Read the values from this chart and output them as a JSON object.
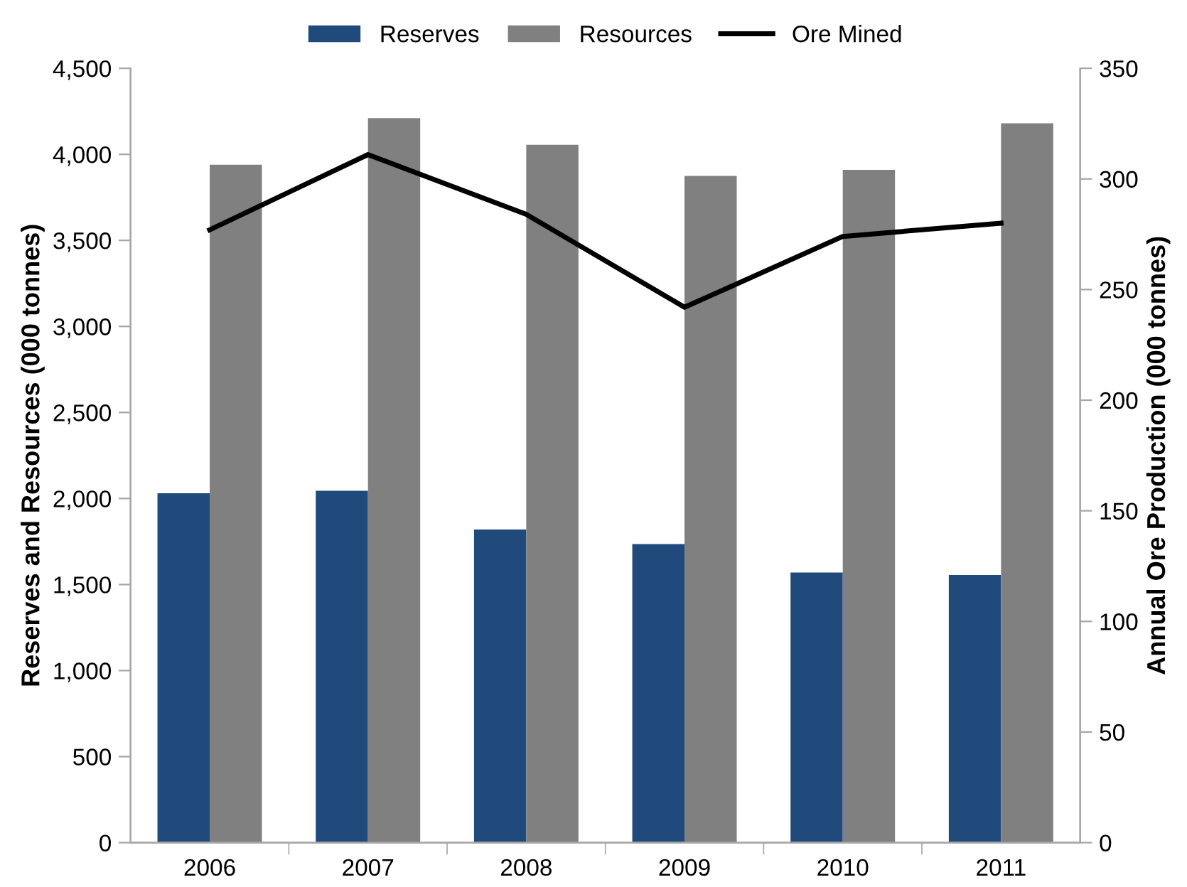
{
  "chart_data": {
    "type": "bar",
    "categories": [
      "2006",
      "2007",
      "2008",
      "2009",
      "2010",
      "2011"
    ],
    "ylabel": "Reserves and Resources (000 tonnes)",
    "y2label": "Annual Ore Production (000 tonnes)",
    "series": [
      {
        "name": "Reserves",
        "color": "#204a7c",
        "values": [
          2030,
          2045,
          1820,
          1735,
          1570,
          1555
        ]
      },
      {
        "name": "Resources",
        "color": "#808080",
        "values": [
          3940,
          4210,
          4055,
          3875,
          3910,
          4180
        ]
      },
      {
        "name": "Ore Mined",
        "type": "line",
        "axis": "y2",
        "color": "#000000",
        "values": [
          277,
          311,
          284,
          242,
          274,
          280
        ]
      }
    ],
    "ylim": [
      0,
      4500
    ],
    "yticks": [
      0,
      500,
      {
        "value": 1000,
        "label": "1,000"
      },
      {
        "value": 1500,
        "label": "1,500"
      },
      {
        "value": 2000,
        "label": "2,000"
      },
      {
        "value": 2500,
        "label": "2,500"
      },
      {
        "value": 3000,
        "label": "3,000"
      },
      {
        "value": 3500,
        "label": "3,500"
      },
      {
        "value": 4000,
        "label": "4,000"
      },
      {
        "value": 4500,
        "label": "4,500"
      }
    ],
    "y2lim": [
      0,
      350
    ],
    "y2ticks": [
      0,
      50,
      100,
      150,
      200,
      250,
      300,
      350
    ],
    "legend": "top",
    "grid": false,
    "marker": "none",
    "line_style": "solid"
  }
}
